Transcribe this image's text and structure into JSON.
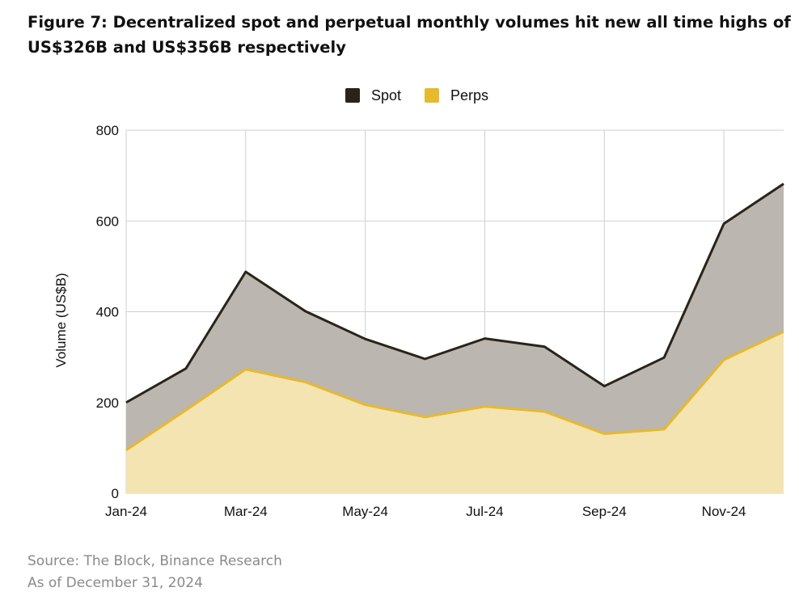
{
  "title": "Figure 7: Decentralized spot and perpetual monthly volumes hit new all time highs of US$326B and US$356B respectively",
  "source": {
    "line1": "Source: The Block, Binance Research",
    "line2": "As of December 31, 2024"
  },
  "chart_data": {
    "type": "area",
    "stacked": true,
    "categories": [
      "Jan-24",
      "Feb-24",
      "Mar-24",
      "Apr-24",
      "May-24",
      "Jun-24",
      "Jul-24",
      "Aug-24",
      "Sep-24",
      "Oct-24",
      "Nov-24",
      "Dec-24"
    ],
    "x_tick_labels": [
      "Jan-24",
      "Mar-24",
      "May-24",
      "Jul-24",
      "Sep-24",
      "Nov-24"
    ],
    "series": [
      {
        "name": "Spot",
        "values": [
          105,
          92,
          215,
          156,
          145,
          128,
          150,
          143,
          105,
          158,
          300,
          326
        ],
        "color": "#2a2418",
        "fill": "#bbb6b0"
      },
      {
        "name": "Perps",
        "values": [
          95,
          183,
          273,
          245,
          195,
          168,
          191,
          180,
          131,
          141,
          294,
          356
        ],
        "color": "#e7b92d",
        "fill": "#f3e4b1"
      }
    ],
    "ylabel": "Volume (US$B)",
    "ylim": [
      0,
      800
    ],
    "yticks": [
      0,
      200,
      400,
      600,
      800
    ],
    "grid": true,
    "legend": "top-center"
  }
}
